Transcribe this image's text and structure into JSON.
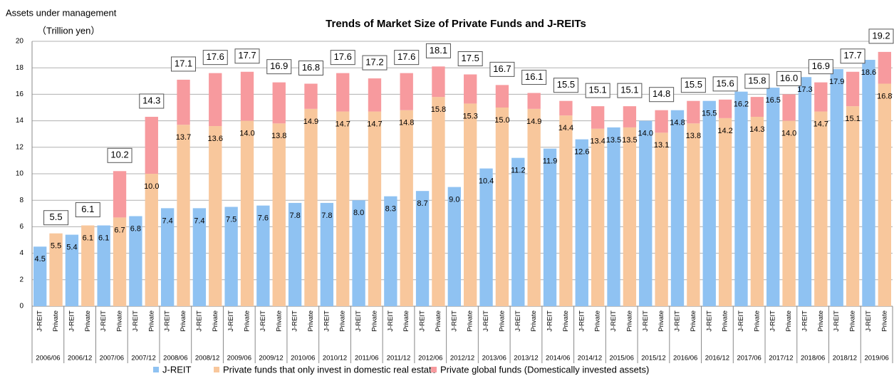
{
  "chart_data": {
    "type": "stacked-bar",
    "title": "Trends of Market Size of Private Funds  and  J-REITs",
    "y_label": "Assets under management",
    "y_unit": "（Trillion yen）",
    "ylim": [
      0,
      20
    ],
    "yticks": [
      0,
      2,
      4,
      6,
      8,
      10,
      12,
      14,
      16,
      18,
      20
    ],
    "grid": true,
    "categories": [
      "J-REIT",
      "Private",
      "J-REIT",
      "Private",
      "J-REIT",
      "Private",
      "J-REIT",
      "Private",
      "J-REIT",
      "Private",
      "J-REIT",
      "Private",
      "J-REIT",
      "Private",
      "J-REIT",
      "Private",
      "J-REIT",
      "Private",
      "J-REIT",
      "Private",
      "J-REIT",
      "Private",
      "J-REIT",
      "Private",
      "J-REIT",
      "Private",
      "J-REIT",
      "Private",
      "J-REIT",
      "Private",
      "J-REIT",
      "Private",
      "J-REIT",
      "Private",
      "J-REIT",
      "Private",
      "J-REIT",
      "Private",
      "J-REIT",
      "Private",
      "J-REIT",
      "Private",
      "J-REIT",
      "Private",
      "J-REIT",
      "Private",
      "J-REIT",
      "Private",
      "J-REIT",
      "Private",
      "J-REIT",
      "Private",
      "J-REIT",
      "Private"
    ],
    "groups": [
      "2006/06",
      "2006/12",
      "2007/06",
      "2007/12",
      "2008/06",
      "2008/12",
      "2009/06",
      "2009/12",
      "2010/06",
      "2010/12",
      "2011/06",
      "2011/12",
      "2012/06",
      "2012/12",
      "2013/06",
      "2013/12",
      "2014/06",
      "2014/12",
      "2015/06",
      "2015/12",
      "2016/06",
      "2016/12",
      "2017/06",
      "2017/12",
      "2018/06",
      "2018/12",
      "2019/06"
    ],
    "series": [
      {
        "name": "J-REIT",
        "color": "#8fc2f2",
        "values": [
          4.5,
          null,
          5.4,
          null,
          6.1,
          null,
          6.8,
          null,
          7.4,
          null,
          7.4,
          null,
          7.5,
          null,
          7.6,
          null,
          7.8,
          null,
          7.8,
          null,
          8.0,
          null,
          8.3,
          null,
          8.7,
          null,
          9.0,
          null,
          10.4,
          null,
          11.2,
          null,
          11.9,
          null,
          12.6,
          null,
          13.5,
          null,
          14.0,
          null,
          14.8,
          null,
          15.5,
          null,
          16.2,
          null,
          16.5,
          null,
          17.3,
          null,
          17.9,
          null,
          18.6,
          null
        ],
        "value_labels": [
          "4.5",
          null,
          "5.4",
          null,
          "6.1",
          null,
          "6.8",
          null,
          "7.4",
          null,
          "7.4",
          null,
          "7.5",
          null,
          "7.6",
          null,
          "7.8",
          null,
          "7.8",
          null,
          "8.0",
          null,
          "8.3",
          null,
          "8.7",
          null,
          "9.0",
          null,
          "10.4",
          null,
          "11.2",
          null,
          "11.9",
          null,
          "12.6",
          null,
          "13.5",
          null,
          "14.0",
          null,
          "14.8",
          null,
          "15.5",
          null,
          "16.2",
          null,
          "16.5",
          null,
          "17.3",
          null,
          "17.9",
          null,
          "18.6",
          null
        ]
      },
      {
        "name": "Private funds that only invest in domestic real estate",
        "color": "#f8c79c",
        "values": [
          null,
          5.5,
          null,
          6.1,
          null,
          6.7,
          null,
          10.0,
          null,
          13.7,
          null,
          13.6,
          null,
          14.0,
          null,
          13.8,
          null,
          14.9,
          null,
          14.7,
          null,
          14.7,
          null,
          14.8,
          null,
          15.8,
          null,
          15.3,
          null,
          15.0,
          null,
          14.9,
          null,
          14.4,
          null,
          13.4,
          null,
          13.5,
          null,
          13.1,
          null,
          13.8,
          null,
          14.2,
          null,
          14.3,
          null,
          14.0,
          null,
          14.7,
          null,
          15.1,
          null,
          16.8
        ],
        "value_labels": [
          null,
          "5.5",
          null,
          "6.1",
          null,
          "6.7",
          null,
          "10.0",
          null,
          "13.7",
          null,
          "13.6",
          null,
          "14.0",
          null,
          "13.8",
          null,
          "14.9",
          null,
          "14.7",
          null,
          "14.7",
          null,
          "14.8",
          null,
          "15.8",
          null,
          "15.3",
          null,
          "15.0",
          null,
          "14.9",
          null,
          "14.4",
          null,
          "13.4",
          null,
          "13.5",
          null,
          "13.1",
          null,
          "13.8",
          null,
          "14.2",
          null,
          "14.3",
          null,
          "14.0",
          null,
          "14.7",
          null,
          "15.1",
          null,
          "16.8"
        ]
      },
      {
        "name": "Private global funds (Domestically invested assets)",
        "color": "#f79a9e",
        "values": [
          null,
          0,
          null,
          0,
          null,
          3.5,
          null,
          4.3,
          null,
          3.4,
          null,
          4.0,
          null,
          3.7,
          null,
          3.1,
          null,
          1.9,
          null,
          2.9,
          null,
          2.5,
          null,
          2.8,
          null,
          2.3,
          null,
          2.2,
          null,
          1.7,
          null,
          1.2,
          null,
          1.1,
          null,
          1.7,
          null,
          1.6,
          null,
          1.7,
          null,
          1.7,
          null,
          1.4,
          null,
          1.5,
          null,
          2.0,
          null,
          2.2,
          null,
          2.6,
          null,
          2.4
        ]
      }
    ],
    "totals": {
      "values": [
        5.5,
        6.1,
        10.2,
        14.3,
        17.1,
        17.6,
        17.7,
        16.9,
        16.8,
        17.6,
        17.2,
        17.6,
        18.1,
        17.5,
        16.7,
        16.1,
        15.5,
        15.1,
        15.1,
        14.8,
        15.5,
        15.6,
        15.8,
        16.0,
        16.9,
        17.7,
        19.2
      ],
      "value_labels": [
        "5.5",
        "6.1",
        "10.2",
        "14.3",
        "17.1",
        "17.6",
        "17.7",
        "16.9",
        "16.8",
        "17.6",
        "17.2",
        "17.6",
        "18.1",
        "17.5",
        "16.7",
        "16.1",
        "15.5",
        "15.1",
        "15.1",
        "14.8",
        "15.5",
        "15.6",
        "15.8",
        "16.0",
        "16.9",
        "17.7",
        "19.2"
      ]
    }
  }
}
